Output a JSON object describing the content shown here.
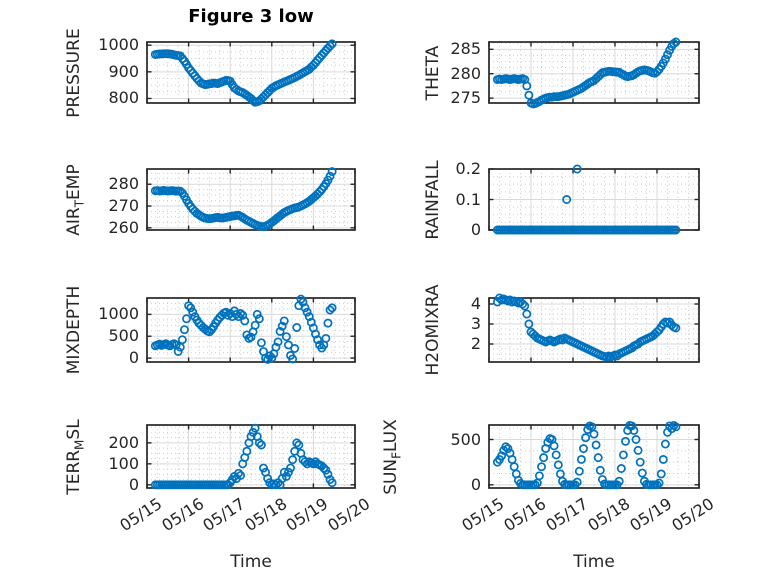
{
  "title": "Figure 3 low",
  "colors": {
    "marker": "#0072BD",
    "axis": "#262626",
    "text": "#262626",
    "grid_major": "#d9d9d9",
    "grid_minor": "#cdcdcd",
    "background": "#ffffff"
  },
  "chart_data": {
    "type": "scatter",
    "marker": "hollow-circle",
    "grid": "major-solid-minor-dotted",
    "x_unit": "days since 05/15 00:00",
    "x_axis": {
      "label": "Time",
      "xlim": [
        0,
        5
      ],
      "tick_values": [
        0,
        1,
        2,
        3,
        4,
        5
      ],
      "tick_labels": [
        "05/15",
        "05/16",
        "05/17",
        "05/18",
        "05/19",
        "05/20"
      ],
      "minor_step": 0.25
    },
    "x": [
      0.2,
      0.25,
      0.3,
      0.35,
      0.4,
      0.45,
      0.5,
      0.55,
      0.6,
      0.65,
      0.7,
      0.75,
      0.8,
      0.85,
      0.9,
      0.95,
      1,
      1.05,
      1.1,
      1.15,
      1.2,
      1.25,
      1.3,
      1.35,
      1.4,
      1.45,
      1.5,
      1.55,
      1.6,
      1.65,
      1.7,
      1.75,
      1.8,
      1.85,
      1.9,
      1.95,
      2,
      2.05,
      2.1,
      2.15,
      2.2,
      2.25,
      2.3,
      2.35,
      2.4,
      2.45,
      2.5,
      2.55,
      2.6,
      2.65,
      2.7,
      2.75,
      2.8,
      2.85,
      2.9,
      2.95,
      3,
      3.05,
      3.1,
      3.15,
      3.2,
      3.25,
      3.3,
      3.35,
      3.4,
      3.45,
      3.5,
      3.55,
      3.6,
      3.65,
      3.7,
      3.75,
      3.8,
      3.85,
      3.9,
      3.95,
      4,
      4.05,
      4.1,
      4.15,
      4.2,
      4.25,
      4.3,
      4.35,
      4.4,
      4.45
    ],
    "subplots": [
      {
        "id": "pressure",
        "name": "PRESSURE",
        "row": 0,
        "col": 0,
        "ylabel_parts": [
          {
            "t": "PRESSURE"
          }
        ],
        "ylim": [
          783,
          1012
        ],
        "yticks": [
          800,
          900,
          1000
        ],
        "ytick_labels": [
          "800",
          "900",
          "1000"
        ],
        "minor_step": 25,
        "values": [
          965,
          966,
          967,
          967,
          968,
          968,
          968,
          967,
          966,
          964,
          962,
          961,
          960,
          950,
          940,
          928,
          915,
          905,
          895,
          885,
          875,
          866,
          858,
          855,
          852,
          853,
          855,
          856,
          858,
          857,
          856,
          859,
          862,
          865,
          868,
          867,
          865,
          852,
          840,
          834,
          828,
          825,
          822,
          817,
          812,
          806,
          800,
          792,
          786,
          788,
          791,
          798,
          806,
          814,
          822,
          830,
          838,
          843,
          848,
          851,
          855,
          858,
          862,
          865,
          868,
          872,
          875,
          879,
          883,
          887,
          892,
          896,
          901,
          905,
          910,
          918,
          925,
          934,
          944,
          953,
          962,
          971,
          980,
          989,
          997,
          1005
        ]
      },
      {
        "id": "theta",
        "name": "THETA",
        "row": 0,
        "col": 1,
        "ylabel_parts": [
          {
            "t": "THETA"
          }
        ],
        "ylim": [
          274,
          286.5
        ],
        "yticks": [
          275,
          280,
          285
        ],
        "ytick_labels": [
          "275",
          "280",
          "285"
        ],
        "minor_step": 1.25,
        "values": [
          278.8,
          278.9,
          278.8,
          278.9,
          279,
          278.9,
          278.8,
          278.9,
          279,
          278.9,
          278.8,
          278.9,
          279,
          278.8,
          277.5,
          275.6,
          274,
          273.8,
          273.9,
          274.1,
          274.3,
          274.6,
          274.8,
          275,
          275.1,
          275.2,
          275.2,
          275.3,
          275.3,
          275.3,
          275.4,
          275.5,
          275.6,
          275.7,
          275.8,
          276,
          276.2,
          276.4,
          276.6,
          276.8,
          277,
          277.3,
          277.6,
          277.9,
          278.2,
          278.4,
          278.6,
          279,
          279.4,
          279.8,
          280.2,
          280.3,
          280.4,
          280.5,
          280.5,
          280.4,
          280.4,
          280.3,
          280.3,
          280,
          279.8,
          279.5,
          279.4,
          279.5,
          279.6,
          279.8,
          280.1,
          280.4,
          280.6,
          280.7,
          280.8,
          280.7,
          280.6,
          280.4,
          280.2,
          280.1,
          280.4,
          280.9,
          281.5,
          282.2,
          283,
          283.9,
          284.8,
          285.6,
          286.2,
          286.5
        ]
      },
      {
        "id": "air-temp",
        "name": "AIR_TEMP",
        "row": 1,
        "col": 0,
        "ylabel_parts": [
          {
            "t": "AIR"
          },
          {
            "t": "T",
            "sub": true
          },
          {
            "t": "EMP"
          }
        ],
        "ylim": [
          259,
          287
        ],
        "yticks": [
          260,
          270,
          280
        ],
        "ytick_labels": [
          "260",
          "270",
          "280"
        ],
        "minor_step": 2.5,
        "values": [
          277,
          277.1,
          276.9,
          277,
          277.2,
          277,
          276.9,
          277,
          277.1,
          277,
          276.8,
          276.9,
          276.8,
          276,
          274.5,
          272.8,
          271.2,
          269.8,
          268.6,
          267.6,
          266.6,
          266,
          265.3,
          264.8,
          264.5,
          264.3,
          264.2,
          264.3,
          264.5,
          264.7,
          264.8,
          264.6,
          264.5,
          264.6,
          264.8,
          265,
          265.2,
          265.4,
          265.5,
          265.7,
          265.8,
          265.3,
          264.8,
          264.1,
          263.5,
          263,
          262.5,
          262,
          261.5,
          261.1,
          260.8,
          260.6,
          260.5,
          260.8,
          261.2,
          261.8,
          262.5,
          263.2,
          264,
          264.8,
          265.5,
          266.3,
          267,
          267.5,
          268,
          268.4,
          268.8,
          269.1,
          269.3,
          269.6,
          270,
          270.5,
          271,
          271.6,
          272.2,
          273,
          273.8,
          274.6,
          275.5,
          276.5,
          277.6,
          278.9,
          280.3,
          281.9,
          283.7,
          285.8
        ]
      },
      {
        "id": "rainfall",
        "name": "RAINFALL",
        "row": 1,
        "col": 1,
        "ylabel_parts": [
          {
            "t": "RAINFALL"
          }
        ],
        "ylim": [
          0,
          0.2
        ],
        "yticks": [
          0,
          0.1,
          0.2
        ],
        "ytick_labels": [
          "0",
          "0.1",
          "0.2"
        ],
        "minor_step": 0.025,
        "values": [
          0,
          0,
          0,
          0,
          0,
          0,
          0,
          0,
          0,
          0,
          0,
          0,
          0,
          0,
          0,
          0,
          0,
          0,
          0,
          0,
          0,
          0,
          0,
          0,
          0,
          0,
          0,
          0,
          0,
          0,
          0,
          0,
          0,
          0,
          0,
          0,
          0,
          0,
          0,
          0,
          0,
          0,
          0,
          0,
          0,
          0,
          0,
          0,
          0,
          0,
          0,
          0,
          0,
          0,
          0,
          0,
          0,
          0,
          0,
          0,
          0,
          0,
          0,
          0,
          0,
          0,
          0,
          0,
          0,
          0,
          0,
          0,
          0,
          0,
          0,
          0,
          0,
          0,
          0,
          0,
          0,
          0,
          0,
          0,
          0,
          0
        ],
        "extra_points": [
          [
            1.85,
            0.1
          ],
          [
            2.1,
            0.2
          ]
        ]
      },
      {
        "id": "mixdepth",
        "name": "MIXDEPTH",
        "row": 2,
        "col": 0,
        "ylabel_parts": [
          {
            "t": "MIXDEPTH"
          }
        ],
        "ylim": [
          -90,
          1375
        ],
        "yticks": [
          0,
          500,
          1000
        ],
        "ytick_labels": [
          "0",
          "500",
          "1000"
        ],
        "minor_step": 125,
        "values": [
          280,
          300,
          320,
          290,
          310,
          330,
          300,
          280,
          310,
          330,
          300,
          150,
          250,
          420,
          650,
          900,
          1200,
          1150,
          1050,
          950,
          870,
          800,
          750,
          700,
          660,
          620,
          600,
          650,
          720,
          800,
          870,
          930,
          980,
          1030,
          1050,
          980,
          1020,
          950,
          1080,
          1000,
          950,
          1020,
          980,
          850,
          530,
          450,
          480,
          600,
          750,
          1000,
          900,
          350,
          150,
          0,
          -30,
          50,
          0,
          100,
          250,
          370,
          610,
          730,
          850,
          490,
          300,
          60,
          -20,
          220,
          700,
          1200,
          1350,
          1280,
          1150,
          1050,
          950,
          820,
          690,
          550,
          420,
          300,
          230,
          300,
          450,
          800,
          1100,
          1150
        ]
      },
      {
        "id": "h2omixra",
        "name": "H2OMIXRA",
        "row": 2,
        "col": 1,
        "ylabel_parts": [
          {
            "t": "H2OMIXRA"
          }
        ],
        "ylim": [
          1.1,
          4.3
        ],
        "yticks": [
          2,
          3,
          4
        ],
        "ytick_labels": [
          "2",
          "3",
          "4"
        ],
        "minor_step": 0.25,
        "values": [
          4.1,
          4.3,
          4.2,
          4.25,
          4.2,
          4.15,
          4.2,
          4.1,
          4.15,
          4.1,
          4.05,
          4.1,
          4,
          3.9,
          3.5,
          3,
          2.6,
          2.5,
          2.4,
          2.3,
          2.25,
          2.2,
          2.15,
          2.1,
          2.15,
          2.2,
          2.15,
          2.1,
          2.15,
          2.2,
          2.25,
          2.2,
          2.3,
          2.25,
          2.2,
          2.15,
          2.1,
          2.05,
          2,
          1.95,
          1.9,
          1.85,
          1.8,
          1.75,
          1.7,
          1.65,
          1.6,
          1.55,
          1.5,
          1.45,
          1.4,
          1.38,
          1.35,
          1.4,
          1.35,
          1.4,
          1.45,
          1.4,
          1.5,
          1.55,
          1.6,
          1.65,
          1.7,
          1.75,
          1.8,
          1.9,
          1.95,
          2,
          2.1,
          2.15,
          2.2,
          2.25,
          2.3,
          2.35,
          2.4,
          2.5,
          2.6,
          2.7,
          2.85,
          3,
          3.1,
          3.05,
          3.1,
          2.95,
          2.85,
          2.8
        ]
      },
      {
        "id": "terr-msl",
        "name": "TERR_MSL",
        "row": 3,
        "col": 0,
        "ylabel_parts": [
          {
            "t": "TERR"
          },
          {
            "t": "M",
            "sub": true
          },
          {
            "t": "SL"
          }
        ],
        "ylim": [
          -15,
          285
        ],
        "yticks": [
          0,
          100,
          200
        ],
        "ytick_labels": [
          "0",
          "100",
          "200"
        ],
        "minor_step": 25,
        "values": [
          0,
          0,
          0,
          0,
          0,
          0,
          0,
          0,
          0,
          0,
          0,
          0,
          0,
          0,
          0,
          0,
          0,
          0,
          0,
          0,
          0,
          0,
          0,
          0,
          0,
          0,
          0,
          0,
          0,
          0,
          0,
          0,
          0,
          0,
          0,
          0,
          10,
          25,
          40,
          30,
          55,
          45,
          100,
          130,
          160,
          200,
          230,
          250,
          270,
          230,
          200,
          190,
          80,
          60,
          30,
          10,
          0,
          5,
          0,
          10,
          0,
          30,
          60,
          40,
          60,
          80,
          120,
          160,
          200,
          190,
          150,
          120,
          110,
          100,
          110,
          105,
          100,
          110,
          100,
          95,
          90,
          80,
          70,
          50,
          25,
          10
        ]
      },
      {
        "id": "sun-flux",
        "name": "SUN_FLUX",
        "row": 3,
        "col": 1,
        "ylabel_parts": [
          {
            "t": "SUN"
          },
          {
            "t": "F",
            "sub": true
          },
          {
            "t": "LUX"
          }
        ],
        "ylim": [
          -35,
          660
        ],
        "yticks": [
          0,
          500
        ],
        "ytick_labels": [
          "0",
          "500"
        ],
        "minor_step": 125,
        "values": [
          250,
          280,
          320,
          380,
          420,
          400,
          350,
          280,
          200,
          120,
          50,
          15,
          0,
          0,
          0,
          0,
          0,
          0,
          0,
          20,
          100,
          200,
          300,
          400,
          470,
          510,
          500,
          430,
          330,
          220,
          120,
          40,
          5,
          0,
          0,
          0,
          0,
          0,
          30,
          150,
          280,
          400,
          520,
          610,
          650,
          640,
          560,
          440,
          300,
          160,
          60,
          10,
          0,
          0,
          0,
          0,
          0,
          0,
          40,
          180,
          330,
          480,
          600,
          655,
          650,
          600,
          500,
          380,
          250,
          130,
          40,
          5,
          0,
          0,
          0,
          0,
          0,
          20,
          120,
          280,
          450,
          580,
          650,
          620,
          655,
          640
        ]
      }
    ]
  }
}
